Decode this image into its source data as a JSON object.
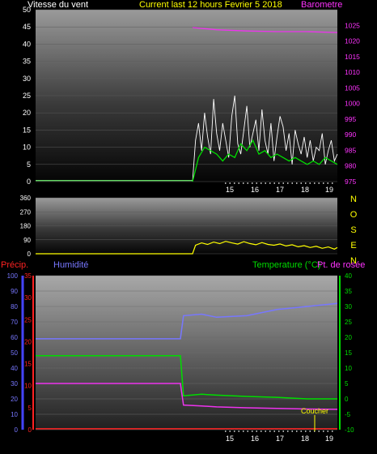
{
  "chart_data": [
    {
      "type": "line",
      "title": "Current last 12 hours Fevrier 5 2018",
      "left_label": "Vitesse du vent",
      "right_label": "Barometre",
      "colors": {
        "title": "#ffff00",
        "left_label": "#ffffff",
        "right_label": "#ff33ff"
      },
      "x_ticks": [
        "15",
        "16",
        "17",
        "18",
        "19"
      ],
      "y_left": {
        "range": [
          0,
          50
        ],
        "ticks": [
          "0",
          "5",
          "10",
          "15",
          "20",
          "25",
          "30",
          "35",
          "40",
          "45",
          "50"
        ],
        "color": "#ffffff"
      },
      "y_right": {
        "range": [
          975,
          1030
        ],
        "ticks": [
          "975",
          "980",
          "985",
          "990",
          "995",
          "1000",
          "1005",
          "1010",
          "1015",
          "1020",
          "1025"
        ],
        "color": "#ff33ff"
      },
      "series": [
        {
          "key": "gust",
          "color": "#ffffff",
          "x": [
            5.2,
            5.3,
            5.4,
            5.5,
            5.6,
            5.7,
            5.8,
            5.9,
            6.0,
            6.1,
            6.2,
            6.3,
            6.4,
            6.5,
            6.6,
            6.7,
            6.8,
            6.9,
            7.0,
            7.1,
            7.2,
            7.3,
            7.4,
            7.5,
            7.6,
            7.7,
            7.8,
            7.9,
            8.0,
            8.1,
            8.2,
            8.3,
            8.4,
            8.5,
            8.6,
            8.7,
            8.8,
            8.9,
            9.0,
            9.1,
            9.2,
            9.3,
            9.4,
            9.5,
            9.6,
            9.7,
            9.8,
            9.9,
            10.0
          ],
          "values": [
            0,
            12,
            17,
            9,
            20,
            13,
            8,
            24,
            14,
            9,
            17,
            12,
            7,
            19,
            25,
            11,
            8,
            15,
            22,
            10,
            14,
            18,
            9,
            21,
            12,
            8,
            17,
            6,
            13,
            19,
            16,
            9,
            14,
            5,
            15,
            11,
            8,
            13,
            7,
            12,
            6,
            10,
            9,
            14,
            5,
            9,
            12,
            6,
            8
          ]
        },
        {
          "key": "avg_speed",
          "color": "#00dd00",
          "x": [
            5.2,
            5.4,
            5.6,
            5.8,
            6.0,
            6.2,
            6.4,
            6.6,
            6.8,
            7.0,
            7.2,
            7.4,
            7.6,
            7.8,
            8.0,
            8.2,
            8.4,
            8.6,
            8.8,
            9.0,
            9.2,
            9.4,
            9.6,
            9.8,
            10.0
          ],
          "values": [
            0,
            7,
            10,
            9,
            8,
            6,
            8,
            7,
            11,
            9,
            12,
            8,
            9,
            7,
            8,
            7,
            6,
            7,
            6,
            5,
            6,
            5,
            7,
            6,
            5
          ]
        },
        {
          "key": "baseline",
          "color": "#66dd66",
          "x": [
            0,
            5.2
          ],
          "values": [
            0.3,
            0.3
          ]
        },
        {
          "key": "barometer",
          "color": "#ee33ee",
          "axis": "right",
          "x": [
            5.2,
            6.0,
            7.0,
            8.0,
            9.0,
            10.0
          ],
          "values": [
            1024.3,
            1023.6,
            1023.2,
            1023.0,
            1023.0,
            1022.7
          ]
        }
      ]
    },
    {
      "type": "scatter",
      "left_ticks": [
        "0",
        "90",
        "180",
        "270",
        "360"
      ],
      "y_range": [
        0,
        360
      ],
      "right_labels": [
        "N",
        "O",
        "S",
        "E",
        "N"
      ],
      "colors": {
        "ticks": "#ffffff",
        "right_labels": "#ffff00"
      },
      "series": [
        {
          "key": "direction",
          "color": "#ffff00",
          "x": [
            0,
            5.2,
            5.3,
            5.5,
            5.7,
            5.9,
            6.1,
            6.3,
            6.5,
            6.7,
            6.9,
            7.1,
            7.3,
            7.5,
            7.7,
            7.9,
            8.1,
            8.3,
            8.5,
            8.7,
            8.9,
            9.1,
            9.3,
            9.5,
            9.7,
            9.9,
            10.0
          ],
          "values": [
            0,
            0,
            55,
            70,
            60,
            75,
            65,
            80,
            70,
            62,
            78,
            66,
            58,
            72,
            60,
            55,
            63,
            50,
            58,
            45,
            52,
            40,
            48,
            35,
            44,
            30,
            40
          ]
        }
      ]
    },
    {
      "type": "line",
      "labels": {
        "precip": "Précip.",
        "humidity": "Humidité",
        "temperature": "Temperature (°C)",
        "dewpoint": "Pt. de rosée"
      },
      "colors": {
        "precip": "#ff2222",
        "humidity": "#7777ff",
        "temperature": "#00dd00",
        "dewpoint": "#ff33ff"
      },
      "x_ticks": [
        "15",
        "16",
        "17",
        "18",
        "19"
      ],
      "y_humidity": {
        "range": [
          0,
          100
        ],
        "ticks": [
          "0",
          "10",
          "20",
          "30",
          "40",
          "50",
          "60",
          "70",
          "80",
          "90",
          "100"
        ]
      },
      "y_precip": {
        "range": [
          0,
          35
        ],
        "ticks": [
          "0",
          "5",
          "10",
          "15",
          "20",
          "25",
          "30",
          "35"
        ]
      },
      "y_temp": {
        "range": [
          -10,
          40
        ],
        "ticks": [
          "-10",
          "-5",
          "0",
          "5",
          "10",
          "15",
          "20",
          "25",
          "30",
          "35",
          "40"
        ]
      },
      "annotation": "Coucher",
      "series": [
        {
          "key": "humidity",
          "color": "#7777ff",
          "axis": "humidity",
          "x": [
            0,
            4.8,
            4.9,
            5.5,
            6.0,
            7.0,
            8.0,
            9.0,
            10.0
          ],
          "values": [
            59,
            59,
            74,
            75,
            73,
            74,
            78,
            80,
            82
          ]
        },
        {
          "key": "temperature",
          "color": "#00dd00",
          "axis": "temp",
          "x": [
            0,
            4.8,
            4.9,
            5.5,
            6.0,
            7.0,
            8.0,
            9.0,
            10.0
          ],
          "values": [
            14,
            14,
            1,
            1.5,
            1.2,
            0.8,
            0.5,
            0,
            0
          ]
        },
        {
          "key": "dewpoint",
          "color": "#ee33ee",
          "axis": "temp",
          "x": [
            0,
            4.8,
            4.9,
            5.5,
            6.0,
            7.0,
            8.0,
            9.0,
            10.0
          ],
          "values": [
            5,
            5,
            -2,
            -2.3,
            -2.6,
            -2.9,
            -3.1,
            -3.3,
            -3.4
          ]
        },
        {
          "key": "precip",
          "color": "#ff2222",
          "axis": "precip",
          "x": [
            0,
            10.0
          ],
          "values": [
            0.2,
            0.2
          ]
        }
      ]
    }
  ]
}
